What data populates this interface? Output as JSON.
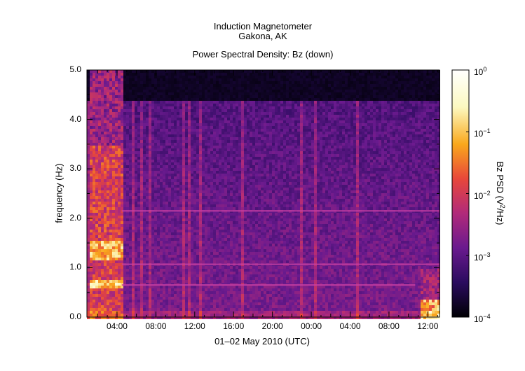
{
  "titles": {
    "instrument": "Induction Magnetometer",
    "location": "Gakona, AK",
    "plot_title": "Power Spectral Density: Bz (down)"
  },
  "colors": {
    "colormap": [
      "#000004",
      "#2a0b5e",
      "#6a1a8e",
      "#b12a7a",
      "#e8473a",
      "#f9a81c",
      "#fcf9c0",
      "#ffffff"
    ],
    "background_low": "#100523",
    "line_color": "#c73fa3"
  },
  "chart_data": {
    "type": "heatmap",
    "xlabel": "01–02 May 2010 (UTC)",
    "ylabel": "frequency (Hz)",
    "x_ticks": [
      "04:00",
      "08:00",
      "12:00",
      "16:00",
      "20:00",
      "00:00",
      "04:00",
      "08:00",
      "12:00"
    ],
    "y_ticks": [
      "0.0",
      "1.0",
      "2.0",
      "3.0",
      "4.0",
      "5.0"
    ],
    "ylim": [
      0,
      5
    ],
    "x_range_hours": [
      0.9,
      37.2
    ],
    "colorbar": {
      "label_base": "Bz PSD (V",
      "label_sup": "2",
      "label_end": "/Hz)",
      "scale": "log",
      "range": [
        0.0001,
        1
      ],
      "ticks": [
        {
          "base": "10",
          "exp": "0"
        },
        {
          "base": "10",
          "exp": "−1"
        },
        {
          "base": "10",
          "exp": "−2"
        },
        {
          "base": "10",
          "exp": "−3"
        },
        {
          "base": "10",
          "exp": "−4"
        }
      ]
    },
    "features": {
      "harmonic_lines_hz": [
        2.15,
        1.07,
        0.65
      ],
      "high_activity_intervals_hours": [
        [
          1.0,
          4.5
        ],
        [
          35.0,
          37.2
        ]
      ],
      "data_gap_above_hz": 4.4
    }
  }
}
